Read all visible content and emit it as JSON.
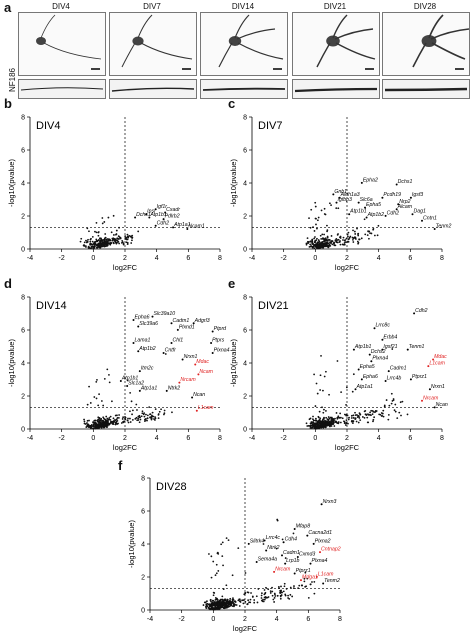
{
  "figure": {
    "panel_letters": [
      "a",
      "b",
      "c",
      "d",
      "e",
      "f"
    ],
    "stain_label": "NF186",
    "timepoints": [
      "DIV4",
      "DIV7",
      "DIV14",
      "DIV21",
      "DIV28"
    ]
  },
  "axes": {
    "xlabel": "log2FC",
    "ylabel": "-log10(pvalue)",
    "xticks": [
      "-4",
      "-2",
      "0",
      "2",
      "4",
      "6",
      "8"
    ],
    "yticks": [
      "0",
      "2",
      "4",
      "6",
      "8"
    ]
  },
  "chart_data": [
    {
      "type": "scatter",
      "title": "DIV4",
      "xlim": [
        -4,
        8
      ],
      "ylim": [
        0,
        8
      ],
      "threshold_x": 2,
      "threshold_y": 1.3,
      "labels": [
        {
          "text": "Ncam1",
          "x": 6.0,
          "y": 1.3,
          "color": "#000"
        },
        {
          "text": "Dchs1",
          "x": 2.7,
          "y": 2.0,
          "color": "#000"
        },
        {
          "text": "Insr",
          "x": 3.4,
          "y": 2.2,
          "color": "#000"
        },
        {
          "text": "Igf1r",
          "x": 4.0,
          "y": 2.5,
          "color": "#000"
        },
        {
          "text": "Cxadr",
          "x": 4.6,
          "y": 2.3,
          "color": "#000"
        },
        {
          "text": "Atp1b1",
          "x": 3.6,
          "y": 2.0,
          "color": "#000"
        },
        {
          "text": "Pdlrb2",
          "x": 4.5,
          "y": 1.9,
          "color": "#000"
        },
        {
          "text": "Cdh2",
          "x": 4.0,
          "y": 1.5,
          "color": "#000"
        },
        {
          "text": "Atp1a1",
          "x": 5.1,
          "y": 1.4,
          "color": "#000"
        }
      ]
    },
    {
      "type": "scatter",
      "title": "DIV7",
      "xlim": [
        -4,
        8
      ],
      "ylim": [
        0,
        8
      ],
      "threshold_x": 2,
      "threshold_y": 1.3,
      "labels": [
        {
          "text": "Epha2",
          "x": 3.0,
          "y": 4.1,
          "color": "#000"
        },
        {
          "text": "Dchs1",
          "x": 5.2,
          "y": 4.0,
          "color": "#000"
        },
        {
          "text": "Gnb1",
          "x": 1.2,
          "y": 3.4,
          "color": "#000"
        },
        {
          "text": "Aldh1a3",
          "x": 1.6,
          "y": 3.2,
          "color": "#000"
        },
        {
          "text": "Pcdh19",
          "x": 4.3,
          "y": 3.2,
          "color": "#000"
        },
        {
          "text": "Igsf3",
          "x": 6.1,
          "y": 3.2,
          "color": "#000"
        },
        {
          "text": "Igfbp3",
          "x": 1.4,
          "y": 2.9,
          "color": "#000"
        },
        {
          "text": "Slc6a",
          "x": 2.8,
          "y": 2.9,
          "color": "#000"
        },
        {
          "text": "Nrp2",
          "x": 5.3,
          "y": 2.8,
          "color": "#000"
        },
        {
          "text": "Epha5",
          "x": 3.2,
          "y": 2.6,
          "color": "#000"
        },
        {
          "text": "Alcam",
          "x": 5.2,
          "y": 2.5,
          "color": "#000"
        },
        {
          "text": "Atp1b1",
          "x": 2.2,
          "y": 2.2,
          "color": "#000"
        },
        {
          "text": "Atp1b2",
          "x": 3.3,
          "y": 2.0,
          "color": "#000"
        },
        {
          "text": "Cdh2",
          "x": 4.5,
          "y": 2.1,
          "color": "#000"
        },
        {
          "text": "Dag1",
          "x": 6.2,
          "y": 2.2,
          "color": "#000"
        },
        {
          "text": "Cntn1",
          "x": 6.8,
          "y": 1.8,
          "color": "#000"
        },
        {
          "text": "Tenm2",
          "x": 7.6,
          "y": 1.3,
          "color": "#000"
        }
      ]
    },
    {
      "type": "scatter",
      "title": "DIV14",
      "xlim": [
        -4,
        8
      ],
      "ylim": [
        0,
        8
      ],
      "threshold_x": 2,
      "threshold_y": 1.3,
      "labels": [
        {
          "text": "Slc39a10",
          "x": 3.8,
          "y": 6.9,
          "color": "#000"
        },
        {
          "text": "Epha6",
          "x": 2.6,
          "y": 6.7,
          "color": "#000"
        },
        {
          "text": "Cadm1",
          "x": 5.0,
          "y": 6.5,
          "color": "#000"
        },
        {
          "text": "Adgrl3",
          "x": 6.4,
          "y": 6.5,
          "color": "#000"
        },
        {
          "text": "Slc39a6",
          "x": 2.9,
          "y": 6.3,
          "color": "#000"
        },
        {
          "text": "Plxnd1",
          "x": 5.4,
          "y": 6.1,
          "color": "#000"
        },
        {
          "text": "Ptprd",
          "x": 7.6,
          "y": 6.0,
          "color": "#000"
        },
        {
          "text": "Lama1",
          "x": 2.6,
          "y": 5.3,
          "color": "#000"
        },
        {
          "text": "Chl1",
          "x": 5.0,
          "y": 5.3,
          "color": "#000"
        },
        {
          "text": "Ptprs",
          "x": 7.5,
          "y": 5.3,
          "color": "#000"
        },
        {
          "text": "Atp1b2",
          "x": 2.9,
          "y": 4.8,
          "color": "#000"
        },
        {
          "text": "Cntfr",
          "x": 4.5,
          "y": 4.7,
          "color": "#000"
        },
        {
          "text": "Plxna4",
          "x": 7.6,
          "y": 4.7,
          "color": "#000"
        },
        {
          "text": "Nrxn1",
          "x": 5.7,
          "y": 4.3,
          "color": "#000"
        },
        {
          "text": "Mdac",
          "x": 6.5,
          "y": 4.0,
          "color": "#e02020"
        },
        {
          "text": "Ncam",
          "x": 6.7,
          "y": 3.4,
          "color": "#e02020"
        },
        {
          "text": "Itm2c",
          "x": 3.0,
          "y": 3.6,
          "color": "#000"
        },
        {
          "text": "Atp1b1",
          "x": 1.8,
          "y": 3.0,
          "color": "#000"
        },
        {
          "text": "Slc1a2",
          "x": 2.2,
          "y": 2.7,
          "color": "#000"
        },
        {
          "text": "Atp1a1",
          "x": 3.0,
          "y": 2.4,
          "color": "#000"
        },
        {
          "text": "Nrcam",
          "x": 5.5,
          "y": 2.9,
          "color": "#e02020"
        },
        {
          "text": "Ntrk2",
          "x": 4.7,
          "y": 2.4,
          "color": "#000"
        },
        {
          "text": "Ncan",
          "x": 6.3,
          "y": 2.0,
          "color": "#000"
        },
        {
          "text": "L1cam",
          "x": 6.6,
          "y": 1.2,
          "color": "#e02020"
        }
      ]
    },
    {
      "type": "scatter",
      "title": "DIV21",
      "xlim": [
        -4,
        8
      ],
      "ylim": [
        0,
        8
      ],
      "threshold_x": 2,
      "threshold_y": 1.3,
      "labels": [
        {
          "text": "Cdh2",
          "x": 6.3,
          "y": 7.1,
          "color": "#000"
        },
        {
          "text": "Lrrc8c",
          "x": 3.8,
          "y": 6.2,
          "color": "#000"
        },
        {
          "text": "Erbb4",
          "x": 4.3,
          "y": 5.5,
          "color": "#000"
        },
        {
          "text": "Atp1b1",
          "x": 2.5,
          "y": 4.9,
          "color": "#000"
        },
        {
          "text": "Igsf21",
          "x": 4.3,
          "y": 4.9,
          "color": "#000"
        },
        {
          "text": "Tenm1",
          "x": 5.9,
          "y": 4.9,
          "color": "#000"
        },
        {
          "text": "Dchs2",
          "x": 3.5,
          "y": 4.6,
          "color": "#000"
        },
        {
          "text": "Plxna4",
          "x": 3.6,
          "y": 4.2,
          "color": "#000"
        },
        {
          "text": "Mdac",
          "x": 7.5,
          "y": 4.3,
          "color": "#e02020"
        },
        {
          "text": "L1cam",
          "x": 7.2,
          "y": 3.9,
          "color": "#e02020"
        },
        {
          "text": "Epha5",
          "x": 2.8,
          "y": 3.7,
          "color": "#000"
        },
        {
          "text": "Cadm1",
          "x": 4.7,
          "y": 3.6,
          "color": "#000"
        },
        {
          "text": "Epha6",
          "x": 3.0,
          "y": 3.1,
          "color": "#000"
        },
        {
          "text": "Lrrc4b",
          "x": 4.5,
          "y": 3.0,
          "color": "#000"
        },
        {
          "text": "Ptprz1",
          "x": 6.1,
          "y": 3.1,
          "color": "#000"
        },
        {
          "text": "Nrxn1",
          "x": 7.3,
          "y": 2.5,
          "color": "#000"
        },
        {
          "text": "Atp1a1",
          "x": 2.6,
          "y": 2.5,
          "color": "#000"
        },
        {
          "text": "Nrcam",
          "x": 6.8,
          "y": 1.8,
          "color": "#e02020"
        },
        {
          "text": "Ncan",
          "x": 7.6,
          "y": 1.4,
          "color": "#000"
        }
      ]
    },
    {
      "type": "scatter",
      "title": "DIV28",
      "xlim": [
        -4,
        8
      ],
      "ylim": [
        0,
        8
      ],
      "threshold_x": 2,
      "threshold_y": 1.3,
      "labels": [
        {
          "text": "Nrxn3",
          "x": 6.9,
          "y": 6.5,
          "color": "#000"
        },
        {
          "text": "Mfap8",
          "x": 5.2,
          "y": 5.0,
          "color": "#000"
        },
        {
          "text": "Cacna2d1",
          "x": 6.0,
          "y": 4.6,
          "color": "#000"
        },
        {
          "text": "Slitrk4",
          "x": 2.3,
          "y": 4.1,
          "color": "#000"
        },
        {
          "text": "Lrrc4c",
          "x": 3.3,
          "y": 4.3,
          "color": "#000"
        },
        {
          "text": "Cdh4",
          "x": 4.5,
          "y": 4.2,
          "color": "#000"
        },
        {
          "text": "Plxna2",
          "x": 6.4,
          "y": 4.1,
          "color": "#000"
        },
        {
          "text": "Cntnap2",
          "x": 6.8,
          "y": 3.6,
          "color": "#e02020"
        },
        {
          "text": "Ntrk2",
          "x": 3.4,
          "y": 3.7,
          "color": "#000"
        },
        {
          "text": "Cadm1",
          "x": 4.4,
          "y": 3.4,
          "color": "#000"
        },
        {
          "text": "Cxmd3",
          "x": 5.4,
          "y": 3.3,
          "color": "#000"
        },
        {
          "text": "Sema4a",
          "x": 2.8,
          "y": 3.0,
          "color": "#000"
        },
        {
          "text": "Lrp1b",
          "x": 4.6,
          "y": 2.9,
          "color": "#000"
        },
        {
          "text": "Plxna4",
          "x": 6.2,
          "y": 2.9,
          "color": "#000"
        },
        {
          "text": "Nrcam",
          "x": 3.9,
          "y": 2.4,
          "color": "#e02020"
        },
        {
          "text": "Ptprz1",
          "x": 5.2,
          "y": 2.3,
          "color": "#000"
        },
        {
          "text": "L1cam",
          "x": 6.6,
          "y": 2.1,
          "color": "#e02020"
        },
        {
          "text": "Mdga1",
          "x": 5.6,
          "y": 1.9,
          "color": "#e02020"
        },
        {
          "text": "Tenm2",
          "x": 7.0,
          "y": 1.7,
          "color": "#000"
        }
      ]
    }
  ]
}
